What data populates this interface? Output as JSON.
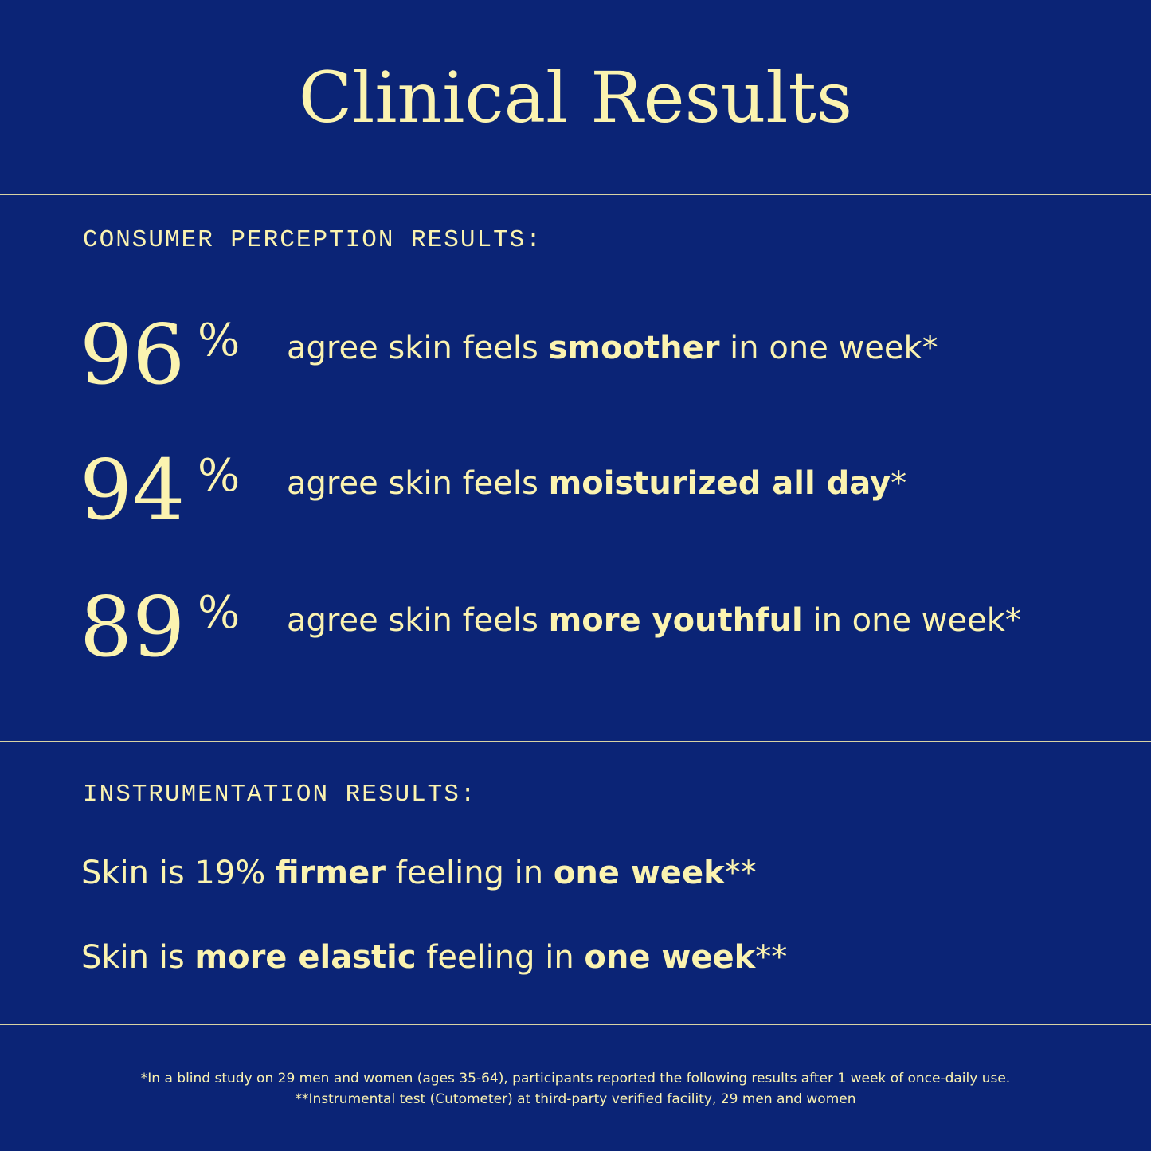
{
  "header": {
    "title": "Clinical Results"
  },
  "consumer": {
    "label": "CONSUMER PERCEPTION RESULTS:",
    "rows": [
      {
        "number": "96",
        "unit": "%",
        "text": [
          {
            "text": "agree skin feels "
          },
          {
            "text": "smoother",
            "bold": true
          },
          {
            "text": " in one week*"
          }
        ]
      },
      {
        "number": "94",
        "unit": "%",
        "text": [
          {
            "text": "agree skin feels "
          },
          {
            "text": "moisturized all day",
            "bold": true
          },
          {
            "text": "*"
          }
        ]
      },
      {
        "number": "89",
        "unit": "%",
        "text": [
          {
            "text": "agree skin feels "
          },
          {
            "text": "more youthful",
            "bold": true
          },
          {
            "text": " in one week*"
          }
        ]
      }
    ]
  },
  "instrumentation": {
    "label": "INSTRUMENTATION RESULTS:",
    "lines": [
      [
        {
          "text": "Skin is 19% "
        },
        {
          "text": "firmer",
          "bold": true
        },
        {
          "text": " feeling in "
        },
        {
          "text": "one week",
          "bold": true
        },
        {
          "text": "**"
        }
      ],
      [
        {
          "text": "Skin is "
        },
        {
          "text": "more elastic",
          "bold": true
        },
        {
          "text": " feeling in "
        },
        {
          "text": "one week",
          "bold": true
        },
        {
          "text": "**"
        }
      ]
    ]
  },
  "footnotes": [
    "*In a blind study on 29 men and women (ages 35-64), participants reported the following results after 1 week of once-daily use.",
    "**Instrumental test (Cutometer) at third-party verified facility, 29 men and women"
  ]
}
